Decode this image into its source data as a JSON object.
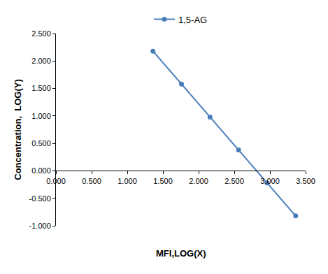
{
  "chart_data": {
    "type": "line",
    "x_label": "MFI,LOG(X)",
    "y_label": "Concentration,  LOG(Y)",
    "x": [
      1.36,
      1.76,
      2.16,
      2.56,
      2.96,
      3.36
    ],
    "series": [
      {
        "name": "1,5-AG",
        "color": "#4a7ebb",
        "marker": "circle",
        "line_style": "solid",
        "values": [
          2.18,
          1.58,
          0.98,
          0.38,
          -0.22,
          -0.82
        ]
      }
    ],
    "xlim": [
      0,
      3.5
    ],
    "xticks": [
      {
        "value": 0,
        "label": "0.000"
      },
      {
        "value": 0.5,
        "label": "0.500"
      },
      {
        "value": 1,
        "label": "1.000"
      },
      {
        "value": 1.5,
        "label": "1.500"
      },
      {
        "value": 2,
        "label": "2.000"
      },
      {
        "value": 2.5,
        "label": "2.500"
      },
      {
        "value": 3,
        "label": "3.000"
      },
      {
        "value": 3.5,
        "label": "3.500"
      }
    ],
    "ylim": [
      -1,
      2.5
    ],
    "yticks": [
      {
        "value": -1,
        "label": "-1.000"
      },
      {
        "value": -0.5,
        "label": "-0.500"
      },
      {
        "value": 0,
        "label": "0.000"
      },
      {
        "value": 0.5,
        "label": "0.500"
      },
      {
        "value": 1,
        "label": "1.000"
      },
      {
        "value": 1.5,
        "label": "1.500"
      },
      {
        "value": 2,
        "label": "2.000"
      },
      {
        "value": 2.5,
        "label": "2.500"
      }
    ],
    "grid": false,
    "legend": "top"
  }
}
